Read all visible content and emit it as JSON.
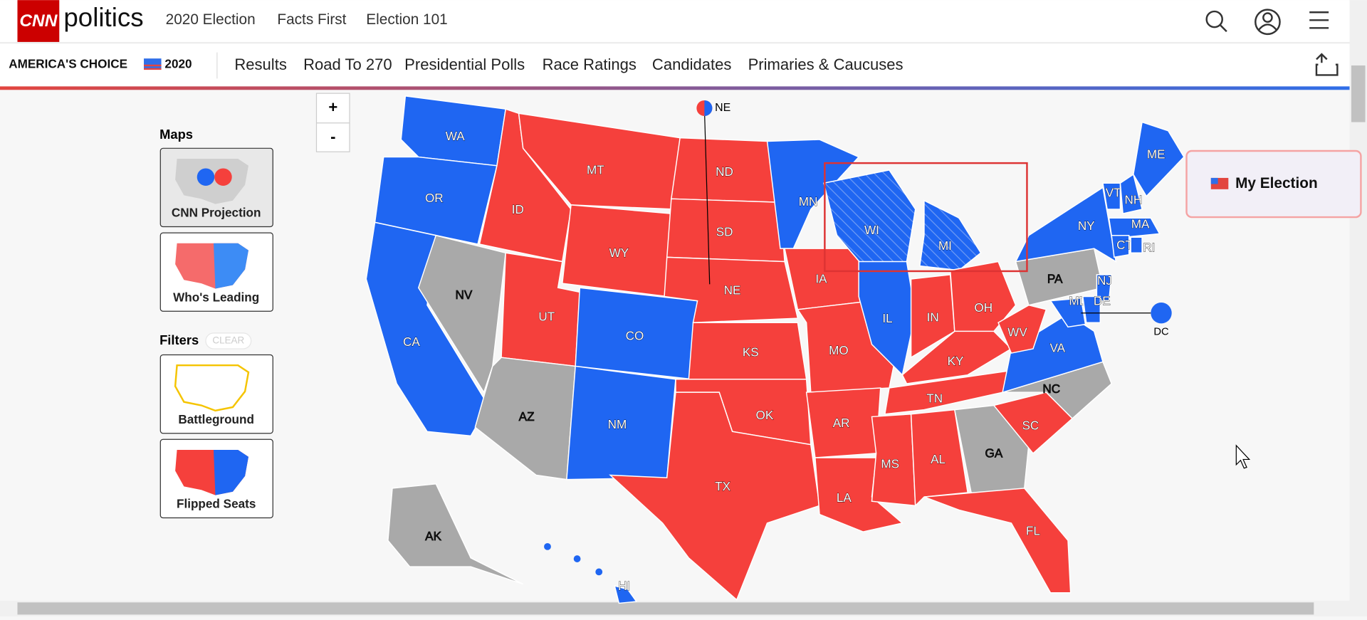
{
  "header": {
    "logo": "CNN",
    "brand": "politics",
    "nav": [
      "2020 Election",
      "Facts First",
      "Election 101"
    ]
  },
  "subnav": {
    "brand": "AMERICA'S CHOICE",
    "year": "2020",
    "items": [
      "Results",
      "Road To 270",
      "Presidential Polls",
      "Race Ratings",
      "Candidates",
      "Primaries & Caucuses"
    ]
  },
  "sidebar": {
    "maps_title": "Maps",
    "maps": [
      "CNN Projection",
      "Who's Leading"
    ],
    "filters_title": "Filters",
    "clear": "CLEAR",
    "filters": [
      "Battleground",
      "Flipped Seats"
    ]
  },
  "zoom": [
    "+",
    "-"
  ],
  "my_election": "My Election",
  "map": {
    "ne_callout": "NE",
    "dc": "DC",
    "dc_color": "#1f66f2",
    "states": [
      {
        "label": "WA",
        "color": "#1f66f2"
      },
      {
        "label": "OR",
        "color": "#1f66f2"
      },
      {
        "label": "CA",
        "color": "#1f66f2"
      },
      {
        "label": "NV",
        "color": "#a9a9a9"
      },
      {
        "label": "ID",
        "color": "#f5403c"
      },
      {
        "label": "MT",
        "color": "#f5403c"
      },
      {
        "label": "WY",
        "color": "#f5403c"
      },
      {
        "label": "UT",
        "color": "#f5403c"
      },
      {
        "label": "AZ",
        "color": "#a9a9a9"
      },
      {
        "label": "CO",
        "color": "#1f66f2"
      },
      {
        "label": "NM",
        "color": "#1f66f2"
      },
      {
        "label": "ND",
        "color": "#f5403c"
      },
      {
        "label": "SD",
        "color": "#f5403c"
      },
      {
        "label": "NE",
        "color": "#f5403c"
      },
      {
        "label": "KS",
        "color": "#f5403c"
      },
      {
        "label": "OK",
        "color": "#f5403c"
      },
      {
        "label": "TX",
        "color": "#f5403c"
      },
      {
        "label": "MN",
        "color": "#1f66f2"
      },
      {
        "label": "IA",
        "color": "#f5403c"
      },
      {
        "label": "MO",
        "color": "#f5403c"
      },
      {
        "label": "AR",
        "color": "#f5403c"
      },
      {
        "label": "LA",
        "color": "#f5403c"
      },
      {
        "label": "WI",
        "color": "#1f66f2"
      },
      {
        "label": "MI",
        "color": "#1f66f2"
      },
      {
        "label": "IL",
        "color": "#1f66f2"
      },
      {
        "label": "IN",
        "color": "#f5403c"
      },
      {
        "label": "OH",
        "color": "#f5403c"
      },
      {
        "label": "KY",
        "color": "#f5403c"
      },
      {
        "label": "TN",
        "color": "#f5403c"
      },
      {
        "label": "MS",
        "color": "#f5403c"
      },
      {
        "label": "AL",
        "color": "#f5403c"
      },
      {
        "label": "GA",
        "color": "#a9a9a9"
      },
      {
        "label": "FL",
        "color": "#f5403c"
      },
      {
        "label": "SC",
        "color": "#f5403c"
      },
      {
        "label": "NC",
        "color": "#a9a9a9"
      },
      {
        "label": "VA",
        "color": "#1f66f2"
      },
      {
        "label": "WV",
        "color": "#f5403c"
      },
      {
        "label": "PA",
        "color": "#a9a9a9"
      },
      {
        "label": "NY",
        "color": "#1f66f2"
      },
      {
        "label": "NJ",
        "color": "#1f66f2"
      },
      {
        "label": "MD",
        "color": "#1f66f2"
      },
      {
        "label": "DE",
        "color": "#1f66f2"
      },
      {
        "label": "VT",
        "color": "#1f66f2"
      },
      {
        "label": "NH",
        "color": "#1f66f2"
      },
      {
        "label": "ME",
        "color": "#1f66f2"
      },
      {
        "label": "MA",
        "color": "#1f66f2"
      },
      {
        "label": "CT",
        "color": "#1f66f2"
      },
      {
        "label": "RI",
        "color": "#1f66f2"
      },
      {
        "label": "AK",
        "color": "#a9a9a9"
      },
      {
        "label": "HI",
        "color": "#1f66f2"
      }
    ]
  }
}
